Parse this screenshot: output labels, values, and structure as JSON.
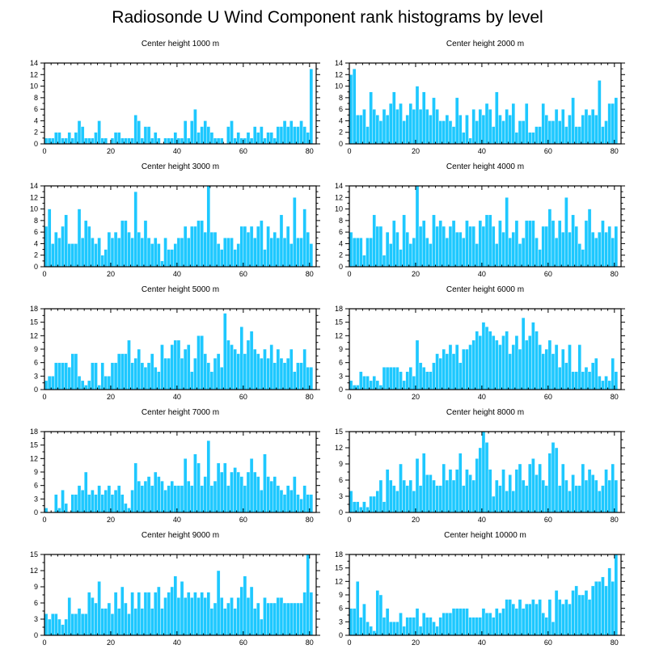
{
  "figure": {
    "title": "Radiosonde U Wind Component rank histograms by level"
  },
  "colors": {
    "bar": "#1ec8ff",
    "frame": "#000000",
    "background": "#ffffff"
  },
  "chart_data": [
    {
      "type": "bar",
      "title": "Center height 1000 m",
      "xlim": [
        0,
        82
      ],
      "xticks": [
        0,
        20,
        40,
        60,
        80
      ],
      "ylim": [
        0,
        14
      ],
      "yticks": [
        0,
        2,
        4,
        6,
        8,
        10,
        12,
        14
      ],
      "values": [
        1,
        1,
        1,
        2,
        2,
        1,
        1,
        2,
        1,
        2,
        4,
        3,
        1,
        1,
        1,
        2,
        4,
        1,
        1,
        0,
        1,
        2,
        2,
        1,
        1,
        1,
        1,
        5,
        4,
        1,
        3,
        3,
        1,
        2,
        1,
        0,
        1,
        1,
        1,
        2,
        1,
        1,
        4,
        1,
        4,
        6,
        2,
        3,
        4,
        3,
        2,
        1,
        1,
        1,
        0,
        3,
        4,
        1,
        2,
        1,
        1,
        2,
        1,
        3,
        2,
        3,
        1,
        2,
        2,
        1,
        3,
        3,
        4,
        3,
        4,
        3,
        3,
        4,
        3,
        2,
        13
      ],
      "xlabel": "",
      "ylabel": ""
    },
    {
      "type": "bar",
      "title": "Center height 2000 m",
      "xlim": [
        0,
        82
      ],
      "xticks": [
        0,
        20,
        40,
        60,
        80
      ],
      "ylim": [
        0,
        14
      ],
      "yticks": [
        0,
        2,
        4,
        6,
        8,
        10,
        12,
        14
      ],
      "values": [
        12,
        13,
        5,
        5,
        6,
        3,
        9,
        6,
        5,
        4,
        6,
        5,
        7,
        9,
        6,
        7,
        4,
        5,
        7,
        6,
        10,
        6,
        9,
        6,
        5,
        8,
        6,
        4,
        4,
        5,
        4,
        3,
        8,
        5,
        2,
        5,
        1,
        6,
        4,
        6,
        5,
        7,
        6,
        3,
        9,
        5,
        4,
        6,
        5,
        7,
        2,
        4,
        4,
        7,
        2,
        2,
        3,
        3,
        7,
        5,
        4,
        4,
        6,
        4,
        6,
        3,
        5,
        8,
        3,
        3,
        5,
        6,
        5,
        6,
        5,
        11,
        3,
        4,
        7,
        7,
        8
      ],
      "xlabel": "",
      "ylabel": ""
    },
    {
      "type": "bar",
      "title": "Center height 3000 m",
      "xlim": [
        0,
        82
      ],
      "xticks": [
        0,
        20,
        40,
        60,
        80
      ],
      "ylim": [
        0,
        14
      ],
      "yticks": [
        0,
        2,
        4,
        6,
        8,
        10,
        12,
        14
      ],
      "values": [
        7,
        10,
        4,
        6,
        5,
        7,
        9,
        4,
        4,
        4,
        10,
        5,
        8,
        7,
        5,
        4,
        5,
        2,
        3,
        6,
        5,
        6,
        5,
        8,
        8,
        6,
        5,
        13,
        6,
        5,
        8,
        5,
        4,
        5,
        4,
        1,
        5,
        3,
        3,
        4,
        5,
        5,
        7,
        5,
        7,
        7,
        8,
        8,
        6,
        14,
        6,
        6,
        4,
        3,
        5,
        5,
        5,
        3,
        4,
        7,
        7,
        6,
        7,
        5,
        7,
        8,
        3,
        7,
        5,
        6,
        5,
        9,
        5,
        7,
        4,
        12,
        5,
        5,
        10,
        6,
        4
      ],
      "xlabel": "",
      "ylabel": ""
    },
    {
      "type": "bar",
      "title": "Center height 4000 m",
      "xlim": [
        0,
        82
      ],
      "xticks": [
        0,
        20,
        40,
        60,
        80
      ],
      "ylim": [
        0,
        14
      ],
      "yticks": [
        0,
        2,
        4,
        6,
        8,
        10,
        12,
        14
      ],
      "values": [
        6,
        5,
        5,
        5,
        2,
        5,
        5,
        9,
        7,
        7,
        2,
        6,
        4,
        8,
        6,
        3,
        9,
        6,
        4,
        5,
        14,
        7,
        8,
        5,
        4,
        9,
        7,
        8,
        7,
        5,
        7,
        8,
        6,
        6,
        5,
        8,
        7,
        7,
        4,
        8,
        7,
        9,
        9,
        7,
        4,
        8,
        6,
        12,
        5,
        6,
        8,
        4,
        5,
        8,
        8,
        8,
        5,
        3,
        7,
        7,
        10,
        8,
        5,
        8,
        6,
        12,
        6,
        9,
        7,
        4,
        3,
        8,
        10,
        6,
        5,
        6,
        8,
        6,
        7,
        5,
        7
      ],
      "xlabel": "",
      "ylabel": ""
    },
    {
      "type": "bar",
      "title": "Center height 5000 m",
      "xlim": [
        0,
        82
      ],
      "xticks": [
        0,
        20,
        40,
        60,
        80
      ],
      "ylim": [
        0,
        18
      ],
      "yticks": [
        0,
        3,
        6,
        9,
        12,
        15,
        18
      ],
      "values": [
        2,
        3,
        3,
        6,
        6,
        6,
        6,
        5,
        8,
        8,
        3,
        2,
        1,
        2,
        6,
        6,
        1,
        6,
        3,
        3,
        6,
        6,
        8,
        8,
        8,
        11,
        6,
        7,
        9,
        6,
        5,
        6,
        8,
        5,
        4,
        10,
        7,
        7,
        10,
        11,
        11,
        7,
        9,
        10,
        4,
        7,
        12,
        12,
        8,
        6,
        4,
        7,
        8,
        5,
        17,
        11,
        10,
        9,
        8,
        14,
        8,
        11,
        13,
        9,
        8,
        7,
        9,
        7,
        10,
        6,
        9,
        7,
        6,
        7,
        9,
        4,
        6,
        6,
        9,
        5,
        5
      ],
      "xlabel": "",
      "ylabel": ""
    },
    {
      "type": "bar",
      "title": "Center height 6000 m",
      "xlim": [
        0,
        82
      ],
      "xticks": [
        0,
        20,
        40,
        60,
        80
      ],
      "ylim": [
        0,
        18
      ],
      "yticks": [
        0,
        3,
        6,
        9,
        12,
        15,
        18
      ],
      "values": [
        2,
        1,
        1,
        4,
        3,
        3,
        2,
        3,
        2,
        1,
        5,
        5,
        5,
        5,
        5,
        4,
        2,
        4,
        5,
        3,
        11,
        6,
        5,
        4,
        4,
        6,
        8,
        7,
        9,
        8,
        10,
        8,
        10,
        6,
        9,
        9,
        10,
        11,
        13,
        12,
        15,
        14,
        13,
        12,
        11,
        10,
        12,
        13,
        8,
        10,
        12,
        9,
        16,
        11,
        12,
        15,
        13,
        10,
        8,
        9,
        11,
        8,
        10,
        5,
        9,
        6,
        10,
        4,
        4,
        10,
        4,
        5,
        4,
        6,
        7,
        3,
        2,
        3,
        2,
        7,
        4
      ],
      "xlabel": "",
      "ylabel": ""
    },
    {
      "type": "bar",
      "title": "Center height 7000 m",
      "xlim": [
        0,
        82
      ],
      "xticks": [
        0,
        20,
        40,
        60,
        80
      ],
      "ylim": [
        0,
        18
      ],
      "yticks": [
        0,
        3,
        6,
        9,
        12,
        15,
        18
      ],
      "values": [
        1,
        0,
        0,
        4,
        1,
        5,
        2,
        0,
        4,
        4,
        6,
        5,
        9,
        4,
        5,
        4,
        6,
        4,
        5,
        6,
        4,
        5,
        6,
        4,
        2,
        1,
        5,
        11,
        7,
        6,
        7,
        8,
        6,
        9,
        8,
        7,
        5,
        6,
        7,
        6,
        6,
        6,
        12,
        7,
        6,
        13,
        11,
        6,
        8,
        16,
        6,
        7,
        11,
        9,
        11,
        6,
        9,
        10,
        9,
        8,
        6,
        9,
        12,
        9,
        8,
        5,
        13,
        8,
        7,
        8,
        6,
        5,
        4,
        6,
        5,
        8,
        4,
        3,
        6,
        4,
        4
      ],
      "xlabel": "",
      "ylabel": ""
    },
    {
      "type": "bar",
      "title": "Center height 8000 m",
      "xlim": [
        0,
        82
      ],
      "xticks": [
        0,
        20,
        40,
        60,
        80
      ],
      "ylim": [
        0,
        15
      ],
      "yticks": [
        0,
        3,
        6,
        9,
        12,
        15
      ],
      "values": [
        4,
        2,
        2,
        1,
        2,
        1,
        3,
        3,
        4,
        6,
        2,
        8,
        6,
        5,
        4,
        9,
        6,
        5,
        6,
        4,
        10,
        5,
        11,
        7,
        7,
        6,
        5,
        5,
        9,
        6,
        8,
        6,
        8,
        11,
        5,
        8,
        7,
        6,
        10,
        12,
        15,
        13,
        8,
        3,
        6,
        5,
        8,
        4,
        7,
        4,
        8,
        9,
        6,
        5,
        9,
        10,
        7,
        9,
        6,
        5,
        11,
        13,
        12,
        5,
        9,
        6,
        4,
        7,
        5,
        5,
        9,
        6,
        8,
        7,
        6,
        4,
        5,
        8,
        6,
        9,
        6
      ],
      "xlabel": "",
      "ylabel": ""
    },
    {
      "type": "bar",
      "title": "Center height 9000 m",
      "xlim": [
        0,
        82
      ],
      "xticks": [
        0,
        20,
        40,
        60,
        80
      ],
      "ylim": [
        0,
        15
      ],
      "yticks": [
        0,
        3,
        6,
        9,
        12,
        15
      ],
      "values": [
        4,
        3,
        4,
        4,
        3,
        2,
        3,
        7,
        4,
        4,
        5,
        4,
        4,
        8,
        7,
        6,
        10,
        5,
        5,
        6,
        4,
        8,
        5,
        9,
        6,
        4,
        8,
        5,
        8,
        5,
        8,
        8,
        5,
        8,
        9,
        5,
        7,
        8,
        9,
        11,
        7,
        10,
        7,
        8,
        7,
        8,
        7,
        8,
        7,
        8,
        5,
        6,
        12,
        7,
        5,
        6,
        7,
        5,
        7,
        9,
        11,
        7,
        9,
        5,
        6,
        3,
        7,
        6,
        6,
        6,
        7,
        7,
        6,
        6,
        6,
        6,
        6,
        6,
        8,
        15,
        8
      ],
      "xlabel": "",
      "ylabel": ""
    },
    {
      "type": "bar",
      "title": "Center height 10000 m",
      "xlim": [
        0,
        82
      ],
      "xticks": [
        0,
        20,
        40,
        60,
        80
      ],
      "ylim": [
        0,
        18
      ],
      "yticks": [
        0,
        3,
        6,
        9,
        12,
        15,
        18
      ],
      "values": [
        6,
        6,
        12,
        4,
        7,
        3,
        2,
        1,
        10,
        9,
        4,
        6,
        3,
        3,
        3,
        5,
        2,
        4,
        4,
        4,
        6,
        2,
        5,
        4,
        4,
        3,
        2,
        4,
        5,
        5,
        5,
        6,
        6,
        6,
        6,
        6,
        4,
        4,
        4,
        4,
        6,
        5,
        5,
        4,
        6,
        5,
        6,
        8,
        8,
        7,
        6,
        8,
        6,
        7,
        7,
        8,
        7,
        8,
        5,
        4,
        8,
        3,
        10,
        8,
        7,
        8,
        7,
        10,
        11,
        9,
        9,
        10,
        8,
        11,
        12,
        12,
        13,
        11,
        15,
        12,
        18
      ],
      "xlabel": "",
      "ylabel": ""
    }
  ]
}
